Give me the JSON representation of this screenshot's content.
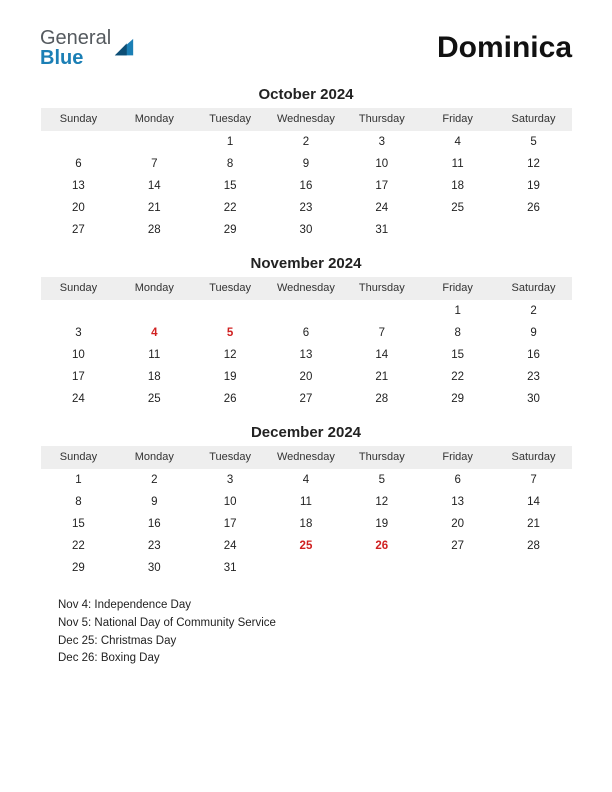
{
  "logo": {
    "text1": "General",
    "text2": "Blue"
  },
  "title": "Dominica",
  "weekday_headers": [
    "Sunday",
    "Monday",
    "Tuesday",
    "Wednesday",
    "Thursday",
    "Friday",
    "Saturday"
  ],
  "colors": {
    "header_bg": "#eeeeee",
    "text": "#222222",
    "holiday": "#d02020",
    "logo_gray": "#555a5f",
    "logo_blue": "#1b7fb5"
  },
  "months": [
    {
      "title": "October 2024",
      "weeks": [
        [
          "",
          "",
          "1",
          "2",
          "3",
          "4",
          "5"
        ],
        [
          "6",
          "7",
          "8",
          "9",
          "10",
          "11",
          "12"
        ],
        [
          "13",
          "14",
          "15",
          "16",
          "17",
          "18",
          "19"
        ],
        [
          "20",
          "21",
          "22",
          "23",
          "24",
          "25",
          "26"
        ],
        [
          "27",
          "28",
          "29",
          "30",
          "31",
          "",
          ""
        ]
      ],
      "holidays_idx": []
    },
    {
      "title": "November 2024",
      "weeks": [
        [
          "",
          "",
          "",
          "",
          "",
          "1",
          "2"
        ],
        [
          "3",
          "4",
          "5",
          "6",
          "7",
          "8",
          "9"
        ],
        [
          "10",
          "11",
          "12",
          "13",
          "14",
          "15",
          "16"
        ],
        [
          "17",
          "18",
          "19",
          "20",
          "21",
          "22",
          "23"
        ],
        [
          "24",
          "25",
          "26",
          "27",
          "28",
          "29",
          "30"
        ]
      ],
      "holidays_idx": [
        [
          1,
          1
        ],
        [
          1,
          2
        ]
      ]
    },
    {
      "title": "December 2024",
      "weeks": [
        [
          "1",
          "2",
          "3",
          "4",
          "5",
          "6",
          "7"
        ],
        [
          "8",
          "9",
          "10",
          "11",
          "12",
          "13",
          "14"
        ],
        [
          "15",
          "16",
          "17",
          "18",
          "19",
          "20",
          "21"
        ],
        [
          "22",
          "23",
          "24",
          "25",
          "26",
          "27",
          "28"
        ],
        [
          "29",
          "30",
          "31",
          "",
          "",
          "",
          ""
        ]
      ],
      "holidays_idx": [
        [
          3,
          3
        ],
        [
          3,
          4
        ]
      ]
    }
  ],
  "holiday_list": [
    "Nov 4: Independence Day",
    "Nov 5: National Day of Community Service",
    "Dec 25: Christmas Day",
    "Dec 26: Boxing Day"
  ]
}
